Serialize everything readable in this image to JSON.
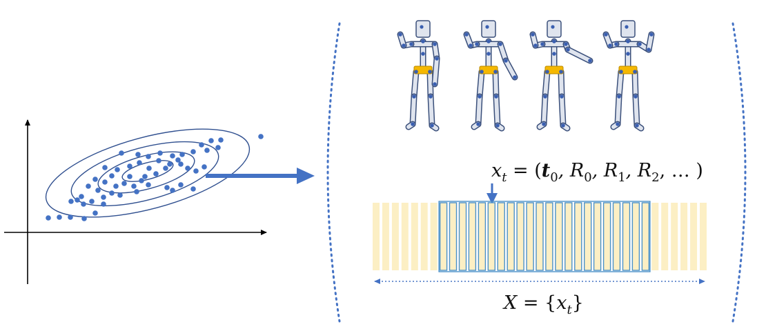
{
  "colors": {
    "axis": "#000000",
    "ellipse": "#2f4f8f",
    "dot": "#4472c4",
    "arrow": "#4472c4",
    "bracket": "#4472c4",
    "bone_fill": "#dfe4ee",
    "bone_stroke": "#3a4f7a",
    "joint": "#3a5fb0",
    "pelvis": "#f5b800",
    "frame_fill": "#fcefc4",
    "frame_border": "#4a90c8"
  },
  "labels": {
    "pose_vector": {
      "lhs": "x",
      "lhs_sub": "t",
      "eq_open": " = (",
      "t": "t",
      "t_sub": "0",
      "r0": ", R",
      "r0_sub": "0",
      "r1": ", R",
      "r1_sub": "1",
      "r2": ", R",
      "r2_sub": "2",
      "tail": ", … )"
    },
    "sequence": {
      "lhs": "X",
      "mid": " = {",
      "x": "x",
      "x_sub": "t",
      "close": "}"
    }
  },
  "figures": [
    {
      "name": "pose-1"
    },
    {
      "name": "pose-2"
    },
    {
      "name": "pose-3"
    },
    {
      "name": "pose-4"
    }
  ],
  "sequence_frames": {
    "total": 35,
    "highlighted_start": 7,
    "highlighted_count": 22
  }
}
